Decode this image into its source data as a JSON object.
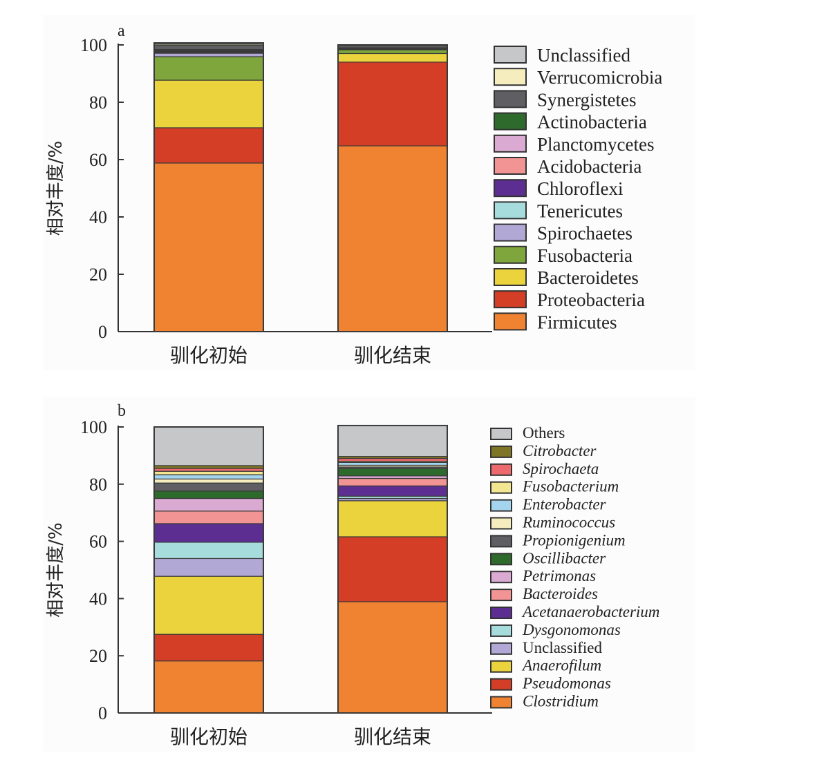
{
  "chart_data": [
    {
      "type": "bar",
      "stacked": true,
      "panel_label": "a",
      "title": "",
      "xlabel": "",
      "ylabel": "相对丰度/%",
      "ylim": [
        0,
        100
      ],
      "yticks": [
        0,
        20,
        40,
        60,
        80,
        100
      ],
      "grid": false,
      "legend_position": "right",
      "categories": [
        "驯化初始",
        "驯化结束"
      ],
      "series": [
        {
          "name": "Firmicutes",
          "color": "#ef8331",
          "italic": false,
          "values": [
            58.8,
            64.8
          ]
        },
        {
          "name": "Proteobacteria",
          "color": "#d43d26",
          "italic": false,
          "values": [
            12.3,
            29.2
          ]
        },
        {
          "name": "Bacteroidetes",
          "color": "#ead33d",
          "italic": false,
          "values": [
            16.6,
            3.0
          ]
        },
        {
          "name": "Fusobacteria",
          "color": "#7ea63c",
          "italic": false,
          "values": [
            8.2,
            1.3
          ]
        },
        {
          "name": "Spirochaetes",
          "color": "#b2a8d6",
          "italic": false,
          "values": [
            1.2,
            0.2
          ]
        },
        {
          "name": "Tenericutes",
          "color": "#a6dcdc",
          "italic": false,
          "values": [
            0.3,
            0.1
          ]
        },
        {
          "name": "Chloroflexi",
          "color": "#5d2e91",
          "italic": false,
          "values": [
            0.3,
            0.1
          ]
        },
        {
          "name": "Acidobacteria",
          "color": "#f29494",
          "italic": false,
          "values": [
            0.2,
            0.1
          ]
        },
        {
          "name": "Planctomycetes",
          "color": "#dbaad3",
          "italic": false,
          "values": [
            0.2,
            0.1
          ]
        },
        {
          "name": "Actinobacteria",
          "color": "#2e6a2c",
          "italic": false,
          "values": [
            0.3,
            0.1
          ]
        },
        {
          "name": "Synergistetes",
          "color": "#5f5f63",
          "italic": false,
          "values": [
            1.5,
            0.8
          ]
        },
        {
          "name": "Verrucomicrobia",
          "color": "#f5edbd",
          "italic": false,
          "values": [
            0.4,
            0.1
          ]
        },
        {
          "name": "Unclassified",
          "color": "#c6c7c9",
          "italic": false,
          "values": [
            0.4,
            0.1
          ]
        }
      ]
    },
    {
      "type": "bar",
      "stacked": true,
      "panel_label": "b",
      "title": "",
      "xlabel": "",
      "ylabel": "相对丰度/%",
      "ylim": [
        0,
        100
      ],
      "yticks": [
        0,
        20,
        40,
        60,
        80,
        100
      ],
      "grid": false,
      "legend_position": "right",
      "categories": [
        "驯化初始",
        "驯化结束"
      ],
      "series": [
        {
          "name": "Clostridium",
          "color": "#ef8331",
          "italic": true,
          "values": [
            18.2,
            38.9
          ]
        },
        {
          "name": "Pseudomonas",
          "color": "#d43d26",
          "italic": true,
          "values": [
            9.3,
            22.7
          ]
        },
        {
          "name": "Anaerofilum",
          "color": "#ead33d",
          "italic": true,
          "values": [
            20.3,
            12.6
          ]
        },
        {
          "name": "Unclassified",
          "color": "#b2a8d6",
          "italic": false,
          "values": [
            6.2,
            0.8
          ]
        },
        {
          "name": "Dysgonomonas",
          "color": "#a6dcdc",
          "italic": true,
          "values": [
            5.7,
            0.8
          ]
        },
        {
          "name": "Acetanaerobacterium",
          "color": "#5d2e91",
          "italic": true,
          "values": [
            6.5,
            3.6
          ]
        },
        {
          "name": "Bacteroides",
          "color": "#f29494",
          "italic": true,
          "values": [
            4.4,
            2.6
          ]
        },
        {
          "name": "Petrimonas",
          "color": "#dbaad3",
          "italic": true,
          "values": [
            4.4,
            0.9
          ]
        },
        {
          "name": "Oscillibacter",
          "color": "#2e6a2c",
          "italic": true,
          "values": [
            2.6,
            2.6
          ]
        },
        {
          "name": "Propionigenium",
          "color": "#5f5f63",
          "italic": true,
          "values": [
            2.8,
            0.5
          ]
        },
        {
          "name": "Ruminococcus",
          "color": "#f5edbd",
          "italic": true,
          "values": [
            1.4,
            0.6
          ]
        },
        {
          "name": "Enterobacter",
          "color": "#a4d4ee",
          "italic": true,
          "values": [
            1.5,
            1.0
          ]
        },
        {
          "name": "Fusobacterium",
          "color": "#f2e690",
          "italic": true,
          "values": [
            1.2,
            0.4
          ]
        },
        {
          "name": "Spirochaeta",
          "color": "#ec6a6e",
          "italic": true,
          "values": [
            1.0,
            1.0
          ]
        },
        {
          "name": "Citrobacter",
          "color": "#7f7526",
          "italic": true,
          "values": [
            1.0,
            0.7
          ]
        },
        {
          "name": "Others",
          "color": "#c6c7c9",
          "italic": false,
          "values": [
            13.5,
            10.8
          ]
        }
      ]
    }
  ]
}
